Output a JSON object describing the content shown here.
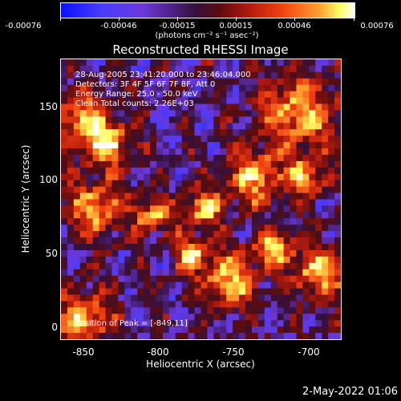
{
  "colorbar": {
    "ticks": [
      "-0.00076",
      "-0.00046",
      "-0.00015",
      "0.00015",
      "0.00046",
      "0.00076"
    ],
    "units": "(photons cm⁻² s⁻¹ asec⁻²)"
  },
  "title": "Reconstructed RHESSI Image",
  "info": {
    "time": "28-Aug-2005 23:41:20.000 to 23:46:04.000",
    "detectors": "Detectors: 3F 4F 5F 6F 7F 8F, Att 0",
    "energy": "Energy Range: 25.0 - 50.0 keV",
    "method": "Clean     Total counts: 2.26E+03",
    "peak": "Position of Peak = [-849,11]"
  },
  "axes": {
    "xlabel": "Heliocentric X (arcsec)",
    "ylabel": "Heliocentric Y (arcsec)",
    "xticks": [
      "-850",
      "-800",
      "-750",
      "-700"
    ],
    "yticks": [
      "0",
      "50",
      "100",
      "150"
    ]
  },
  "footer": {
    "date": "2-May-2022 01:06"
  },
  "chart_data": {
    "type": "heatmap",
    "title": "Reconstructed RHESSI Image",
    "xlabel": "Heliocentric X (arcsec)",
    "ylabel": "Heliocentric Y (arcsec)",
    "xlim": [
      -865,
      -677
    ],
    "ylim": [
      -9,
      178
    ],
    "colorbar_range": [
      -0.00076,
      0.00076
    ],
    "peak": [
      -849,
      11
    ]
  }
}
